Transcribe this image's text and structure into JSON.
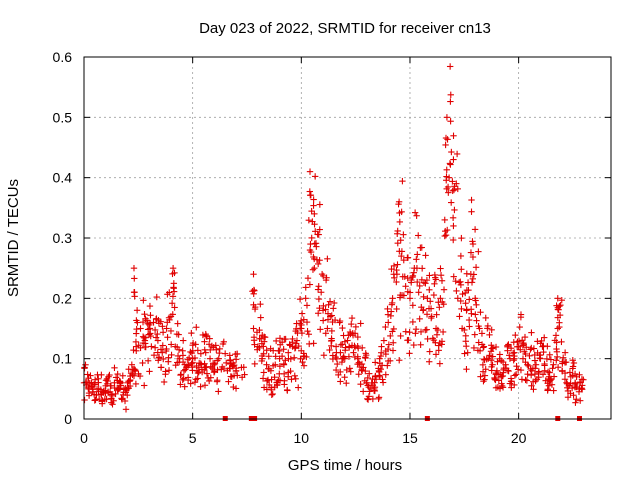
{
  "chart_data": {
    "type": "scatter",
    "title": "Day 023 of 2022, SRMTID for receiver cn13",
    "xlabel": "GPS time / hours",
    "ylabel": "SRMTID / TECUs",
    "xlim": [
      0,
      24.25
    ],
    "ylim": [
      0,
      0.6
    ],
    "grid": true,
    "x_ticks": [
      0,
      5,
      10,
      15,
      20
    ],
    "x_tick_labels": [
      "0",
      "5",
      "10",
      "15",
      "20"
    ],
    "y_ticks": [
      0,
      0.1,
      0.2,
      0.3,
      0.4,
      0.5,
      0.6
    ],
    "y_tick_labels": [
      "0",
      "0.1",
      "0.2",
      "0.3",
      "0.4",
      "0.5",
      "0.6"
    ],
    "marker_color": "#e00000",
    "series": [
      {
        "name": "SRMTID",
        "marker": "plus",
        "points": [
          [
            0.0,
            0.06
          ],
          [
            0.2,
            0.05
          ],
          [
            0.4,
            0.045
          ],
          [
            0.6,
            0.05
          ],
          [
            0.8,
            0.04
          ],
          [
            1.0,
            0.055
          ],
          [
            1.2,
            0.045
          ],
          [
            1.4,
            0.06
          ],
          [
            1.6,
            0.05
          ],
          [
            1.8,
            0.04
          ],
          [
            2.0,
            0.06
          ],
          [
            2.2,
            0.09
          ],
          [
            2.4,
            0.12
          ],
          [
            2.6,
            0.15
          ],
          [
            2.8,
            0.13
          ],
          [
            3.0,
            0.14
          ],
          [
            3.2,
            0.16
          ],
          [
            3.4,
            0.13
          ],
          [
            3.6,
            0.11
          ],
          [
            3.8,
            0.15
          ],
          [
            4.0,
            0.17
          ],
          [
            4.2,
            0.12
          ],
          [
            4.4,
            0.1
          ],
          [
            4.6,
            0.08
          ],
          [
            4.8,
            0.09
          ],
          [
            5.0,
            0.1
          ],
          [
            5.2,
            0.08
          ],
          [
            5.4,
            0.09
          ],
          [
            5.6,
            0.11
          ],
          [
            5.8,
            0.1
          ],
          [
            6.0,
            0.09
          ],
          [
            6.2,
            0.1
          ],
          [
            6.6,
            0.08
          ],
          [
            6.8,
            0.07
          ],
          [
            7.0,
            0.08
          ],
          [
            7.8,
            0.15
          ],
          [
            8.0,
            0.12
          ],
          [
            8.2,
            0.1
          ],
          [
            8.4,
            0.09
          ],
          [
            8.6,
            0.08
          ],
          [
            8.8,
            0.09
          ],
          [
            9.0,
            0.1
          ],
          [
            9.2,
            0.09
          ],
          [
            9.4,
            0.11
          ],
          [
            9.6,
            0.12
          ],
          [
            9.8,
            0.13
          ],
          [
            10.0,
            0.15
          ],
          [
            10.2,
            0.2
          ],
          [
            10.4,
            0.28
          ],
          [
            10.6,
            0.25
          ],
          [
            10.8,
            0.22
          ],
          [
            11.0,
            0.18
          ],
          [
            11.2,
            0.15
          ],
          [
            11.4,
            0.13
          ],
          [
            11.6,
            0.12
          ],
          [
            11.8,
            0.11
          ],
          [
            12.0,
            0.1
          ],
          [
            12.2,
            0.12
          ],
          [
            12.4,
            0.11
          ],
          [
            12.6,
            0.1
          ],
          [
            12.8,
            0.08
          ],
          [
            13.0,
            0.06
          ],
          [
            13.2,
            0.05
          ],
          [
            13.4,
            0.07
          ],
          [
            13.6,
            0.1
          ],
          [
            13.8,
            0.13
          ],
          [
            14.0,
            0.16
          ],
          [
            14.2,
            0.2
          ],
          [
            14.4,
            0.24
          ],
          [
            14.6,
            0.27
          ],
          [
            14.8,
            0.22
          ],
          [
            15.0,
            0.2
          ],
          [
            15.2,
            0.25
          ],
          [
            15.4,
            0.21
          ],
          [
            15.6,
            0.18
          ],
          [
            15.8,
            0.2
          ],
          [
            16.0,
            0.17
          ],
          [
            16.2,
            0.15
          ],
          [
            16.4,
            0.2
          ],
          [
            16.6,
            0.33
          ],
          [
            16.8,
            0.4
          ],
          [
            17.0,
            0.32
          ],
          [
            17.2,
            0.2
          ],
          [
            17.4,
            0.15
          ],
          [
            17.6,
            0.18
          ],
          [
            17.8,
            0.24
          ],
          [
            18.0,
            0.2
          ],
          [
            18.2,
            0.15
          ],
          [
            18.4,
            0.12
          ],
          [
            18.6,
            0.1
          ],
          [
            18.8,
            0.09
          ],
          [
            19.0,
            0.08
          ],
          [
            19.2,
            0.07
          ],
          [
            19.4,
            0.09
          ],
          [
            19.6,
            0.1
          ],
          [
            19.8,
            0.11
          ],
          [
            20.0,
            0.12
          ],
          [
            20.2,
            0.1
          ],
          [
            20.4,
            0.09
          ],
          [
            20.6,
            0.08
          ],
          [
            20.8,
            0.09
          ],
          [
            21.0,
            0.1
          ],
          [
            21.2,
            0.08
          ],
          [
            21.4,
            0.07
          ],
          [
            21.6,
            0.09
          ],
          [
            21.8,
            0.15
          ],
          [
            22.0,
            0.08
          ],
          [
            22.2,
            0.06
          ],
          [
            22.4,
            0.07
          ],
          [
            22.6,
            0.06
          ],
          [
            22.8,
            0.05
          ]
        ]
      }
    ],
    "peaks": [
      [
        2.3,
        0.25
      ],
      [
        4.1,
        0.25
      ],
      [
        7.8,
        0.24
      ],
      [
        10.4,
        0.41
      ],
      [
        10.6,
        0.34
      ],
      [
        14.5,
        0.36
      ],
      [
        16.7,
        0.5
      ],
      [
        17.0,
        0.43
      ],
      [
        17.9,
        0.29
      ],
      [
        21.8,
        0.2
      ]
    ],
    "gap_markers_x": [
      6.5,
      7.7,
      7.85,
      15.8,
      21.8,
      22.8
    ]
  }
}
